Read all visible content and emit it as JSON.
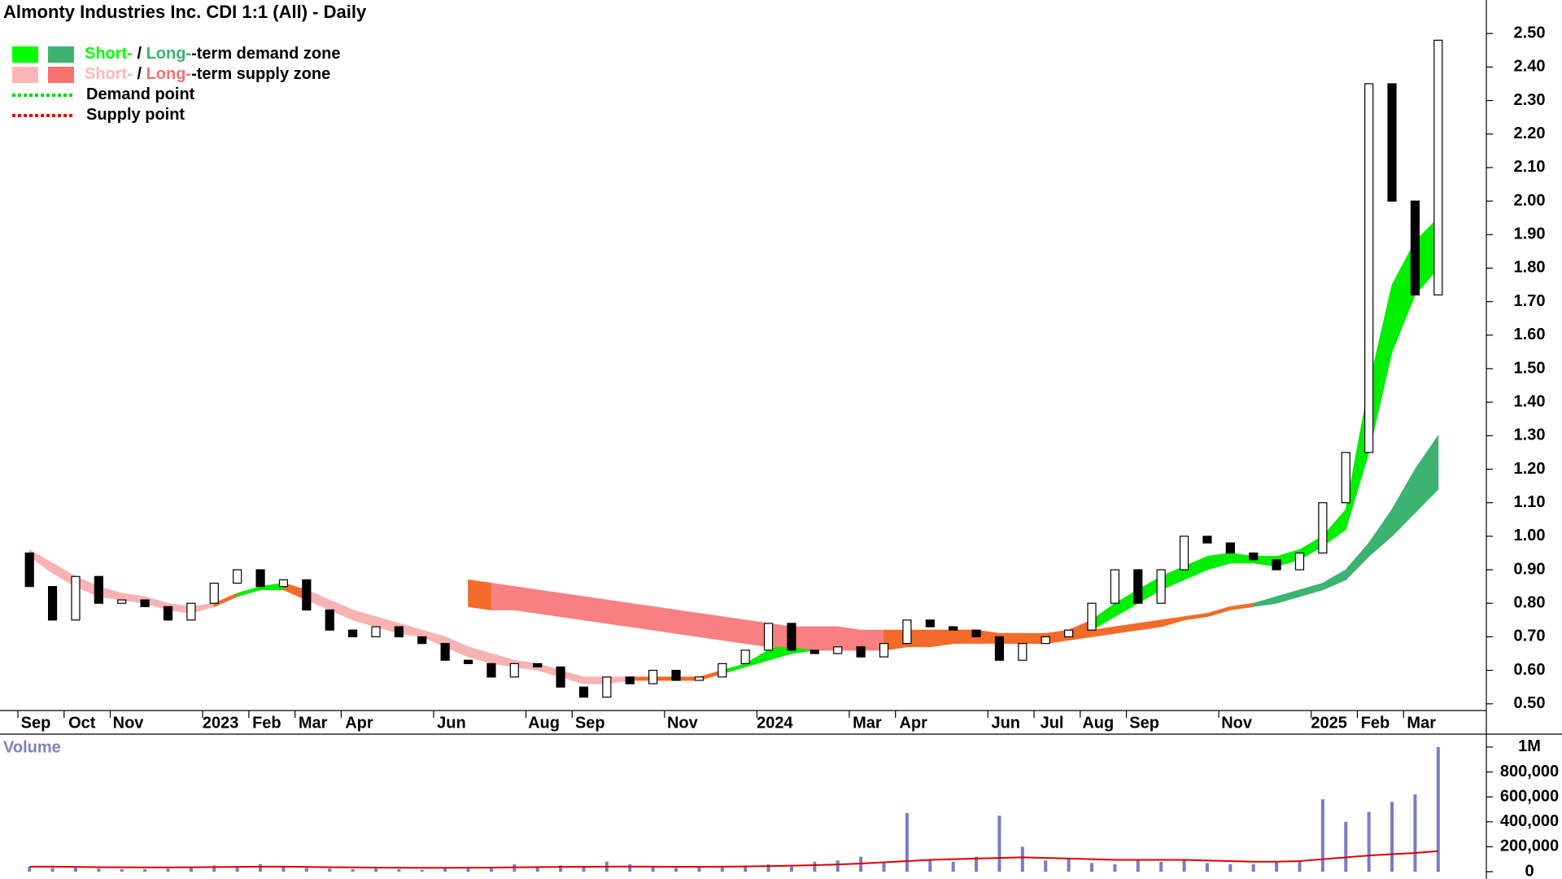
{
  "chart_data": [
    {
      "type": "candlestick",
      "title": "Almonty Industries Inc. CDI 1:1 (All) - Daily",
      "categories": [
        "Sep",
        null,
        "Oct",
        null,
        "Nov",
        null,
        null,
        null,
        "2023",
        null,
        "Feb",
        null,
        "Mar",
        null,
        "Apr",
        null,
        null,
        null,
        "Jun",
        null,
        null,
        null,
        "Aug",
        null,
        "Sep",
        null,
        null,
        null,
        "Nov",
        null,
        null,
        null,
        "2024",
        null,
        null,
        null,
        "Mar",
        null,
        "Apr",
        null,
        null,
        null,
        "Jun",
        null,
        "Jul",
        null,
        "Aug",
        null,
        "Sep",
        null,
        null,
        null,
        "Nov",
        null,
        null,
        null,
        "2025",
        null,
        "Feb",
        null,
        "Mar",
        null
      ],
      "open": [
        0.95,
        0.85,
        0.75,
        0.88,
        0.8,
        0.81,
        0.79,
        0.75,
        0.8,
        0.86,
        0.9,
        0.85,
        0.87,
        0.78,
        0.72,
        0.7,
        0.73,
        0.7,
        0.68,
        0.63,
        0.62,
        0.58,
        0.62,
        0.61,
        0.55,
        0.52,
        0.58,
        0.56,
        0.6,
        0.57,
        0.58,
        0.62,
        0.66,
        0.74,
        0.66,
        0.65,
        0.67,
        0.64,
        0.68,
        0.75,
        0.73,
        0.72,
        0.7,
        0.63,
        0.68,
        0.7,
        0.72,
        0.8,
        0.9,
        0.8,
        0.9,
        1.0,
        0.98,
        0.95,
        0.93,
        0.9,
        0.95,
        1.1,
        1.25,
        2.35,
        2.0,
        1.72
      ],
      "close": [
        0.85,
        0.75,
        0.88,
        0.8,
        0.81,
        0.79,
        0.75,
        0.8,
        0.86,
        0.9,
        0.85,
        0.87,
        0.78,
        0.72,
        0.7,
        0.73,
        0.7,
        0.68,
        0.63,
        0.62,
        0.58,
        0.62,
        0.61,
        0.55,
        0.52,
        0.58,
        0.56,
        0.6,
        0.57,
        0.58,
        0.62,
        0.66,
        0.74,
        0.66,
        0.65,
        0.67,
        0.64,
        0.68,
        0.75,
        0.73,
        0.72,
        0.7,
        0.63,
        0.68,
        0.7,
        0.72,
        0.8,
        0.9,
        0.8,
        0.9,
        1.0,
        0.98,
        0.95,
        0.93,
        0.9,
        0.95,
        1.1,
        1.25,
        2.35,
        2.0,
        1.72,
        2.48
      ],
      "up_color": "#ffffff",
      "down_color": "#000000",
      "bands": [
        {
          "lower": [
            0.94,
            0.89,
            0.85,
            0.82,
            0.81,
            0.8,
            0.78,
            0.77,
            0.79,
            0.82,
            0.84,
            0.84,
            0.81,
            0.78,
            0.75,
            0.73,
            0.71,
            0.7,
            0.67,
            0.64,
            0.62,
            0.61,
            0.6,
            0.58,
            0.56,
            0.56,
            0.57,
            0.57,
            0.57,
            0.57,
            0.59,
            0.61,
            0.63,
            0.65,
            0.66,
            0.66,
            0.66,
            0.66,
            0.67,
            0.68,
            0.69,
            0.69,
            0.69,
            0.68,
            0.68,
            0.7,
            0.72,
            0.76,
            0.8,
            0.84,
            0.87,
            0.9,
            0.92,
            0.92,
            0.91,
            0.93,
            0.97,
            1.02,
            1.25,
            1.55,
            1.72,
            1.8
          ],
          "upper": [
            0.96,
            0.92,
            0.88,
            0.85,
            0.83,
            0.82,
            0.8,
            0.79,
            0.8,
            0.83,
            0.85,
            0.86,
            0.84,
            0.81,
            0.78,
            0.76,
            0.74,
            0.72,
            0.7,
            0.67,
            0.65,
            0.63,
            0.62,
            0.6,
            0.58,
            0.58,
            0.58,
            0.58,
            0.58,
            0.58,
            0.6,
            0.62,
            0.66,
            0.69,
            0.69,
            0.69,
            0.69,
            0.7,
            0.71,
            0.72,
            0.72,
            0.72,
            0.71,
            0.71,
            0.71,
            0.72,
            0.75,
            0.8,
            0.84,
            0.88,
            0.91,
            0.94,
            0.95,
            0.94,
            0.94,
            0.96,
            1.0,
            1.08,
            1.45,
            1.75,
            1.88,
            1.95
          ],
          "colors": [
            "#f7b3b3",
            "#f7b3b3",
            "#f7b3b3",
            "#f7b3b3",
            "#f7b3b3",
            "#f7b3b3",
            "#f7b3b3",
            "#f7b3b3",
            "#f26b2a",
            "#00ee00",
            "#00ee00",
            "#f26b2a",
            "#f7b3b3",
            "#f7b3b3",
            "#f7b3b3",
            "#f7b3b3",
            "#f7b3b3",
            "#f7b3b3",
            "#f7b3b3",
            "#f7b3b3",
            "#f7b3b3",
            "#f7b3b3",
            "#f7b3b3",
            "#f7b3b3",
            "#f7b3b3",
            "#f7b3b3",
            "#f26b2a",
            "#f26b2a",
            "#f26b2a",
            "#f26b2a",
            "#00ee00",
            "#00ee00",
            "#00ee00",
            "#00ee00",
            "#f26b2a",
            "#f26b2a",
            "#f26b2a",
            "#f26b2a",
            "#00ee00",
            "#00ee00",
            "#f26b2a",
            "#f26b2a",
            "#f26b2a",
            "#f26b2a",
            "#f26b2a",
            "#f26b2a",
            "#00ee00",
            "#00ee00",
            "#00ee00",
            "#00ee00",
            "#00ee00",
            "#00ee00",
            "#00ee00",
            "#00ee00",
            "#00ee00",
            "#00ee00",
            "#00ee00",
            "#00ee00",
            "#00ee00",
            "#00ee00",
            "#00ee00",
            "#f26b2a"
          ]
        },
        {
          "lower": [
            null,
            null,
            null,
            null,
            null,
            null,
            null,
            null,
            null,
            null,
            null,
            null,
            null,
            null,
            null,
            null,
            null,
            null,
            null,
            0.79,
            0.78,
            0.78,
            0.77,
            0.76,
            0.75,
            0.74,
            0.73,
            0.72,
            0.71,
            0.7,
            0.69,
            0.68,
            0.67,
            0.67,
            0.66,
            0.66,
            0.66,
            0.66,
            0.67,
            0.67,
            0.68,
            0.68,
            0.68,
            0.68,
            0.68,
            0.69,
            0.7,
            0.71,
            0.72,
            0.73,
            0.75,
            0.76,
            0.78,
            0.79,
            0.8,
            0.82,
            0.84,
            0.87,
            0.94,
            1.0,
            1.07,
            1.14
          ],
          "upper": [
            null,
            null,
            null,
            null,
            null,
            null,
            null,
            null,
            null,
            null,
            null,
            null,
            null,
            null,
            null,
            null,
            null,
            null,
            null,
            0.87,
            0.86,
            0.85,
            0.84,
            0.83,
            0.82,
            0.81,
            0.8,
            0.79,
            0.78,
            0.77,
            0.76,
            0.75,
            0.74,
            0.73,
            0.73,
            0.73,
            0.72,
            0.72,
            0.72,
            0.72,
            0.72,
            0.72,
            0.71,
            0.71,
            0.7,
            0.71,
            0.72,
            0.73,
            0.74,
            0.75,
            0.76,
            0.77,
            0.79,
            0.8,
            0.82,
            0.84,
            0.86,
            0.9,
            0.98,
            1.08,
            1.2,
            1.3
          ],
          "colors": [
            null,
            null,
            null,
            null,
            null,
            null,
            null,
            null,
            null,
            null,
            null,
            null,
            null,
            null,
            null,
            null,
            null,
            null,
            null,
            "#f26b2a",
            "#f88080",
            "#f88080",
            "#f88080",
            "#f88080",
            "#f88080",
            "#f88080",
            "#f88080",
            "#f88080",
            "#f88080",
            "#f88080",
            "#f88080",
            "#f88080",
            "#f88080",
            "#f88080",
            "#f88080",
            "#f88080",
            "#f88080",
            "#f26b2a",
            "#f26b2a",
            "#f26b2a",
            "#f26b2a",
            "#f26b2a",
            "#f26b2a",
            "#f26b2a",
            "#f26b2a",
            "#f26b2a",
            "#f26b2a",
            "#f26b2a",
            "#f26b2a",
            "#f26b2a",
            "#f26b2a",
            "#f26b2a",
            "#f26b2a",
            "#3cb371",
            "#3cb371",
            "#3cb371",
            "#3cb371",
            "#3cb371",
            "#3cb371",
            "#3cb371",
            "#3cb371",
            "#3cb371"
          ]
        }
      ],
      "ylim": [
        0.48,
        2.6
      ],
      "yticks": [
        {
          "value": 0.5,
          "label": "0.50"
        },
        {
          "value": 0.6,
          "label": "0.60"
        },
        {
          "value": 0.7,
          "label": "0.70"
        },
        {
          "value": 0.8,
          "label": "0.80"
        },
        {
          "value": 0.9,
          "label": "0.90"
        },
        {
          "value": 1.0,
          "label": "1.00"
        },
        {
          "value": 1.1,
          "label": "1.10"
        },
        {
          "value": 1.2,
          "label": "1.20"
        },
        {
          "value": 1.3,
          "label": "1.30"
        },
        {
          "value": 1.4,
          "label": "1.40"
        },
        {
          "value": 1.5,
          "label": "1.50"
        },
        {
          "value": 1.6,
          "label": "1.60"
        },
        {
          "value": 1.7,
          "label": "1.70"
        },
        {
          "value": 1.8,
          "label": "1.80"
        },
        {
          "value": 1.9,
          "label": "1.90"
        },
        {
          "value": 2.0,
          "label": "2.00"
        },
        {
          "value": 2.1,
          "label": "2.10"
        },
        {
          "value": 2.2,
          "label": "2.20"
        },
        {
          "value": 2.3,
          "label": "2.30"
        },
        {
          "value": 2.4,
          "label": "2.40"
        },
        {
          "value": 2.5,
          "label": "2.50"
        }
      ],
      "legend": [
        {
          "swatches": [
            "#00ff00",
            "#3cb371"
          ],
          "parts": [
            {
              "text": "Short-",
              "color": "#00ff00"
            },
            {
              "text": " / "
            },
            {
              "text": "Long-",
              "color": "#3cb371"
            },
            {
              "text": "-term demand zone"
            }
          ]
        },
        {
          "swatches": [
            "#ffb6b6",
            "#f87070"
          ],
          "parts": [
            {
              "text": "Short-",
              "color": "#ffb6b6"
            },
            {
              "text": " / "
            },
            {
              "text": "Long-",
              "color": "#f87070"
            },
            {
              "text": "-term supply zone"
            }
          ]
        },
        {
          "line_color": "#00dd00",
          "parts": [
            {
              "text": "Demand point"
            }
          ]
        },
        {
          "line_color": "#ee0000",
          "parts": [
            {
              "text": "Supply point"
            }
          ]
        }
      ]
    },
    {
      "type": "bar",
      "title": "Volume",
      "values": [
        40000,
        30000,
        35000,
        25000,
        20000,
        20000,
        25000,
        30000,
        50000,
        40000,
        60000,
        45000,
        30000,
        25000,
        20000,
        25000,
        20000,
        15000,
        30000,
        25000,
        35000,
        60000,
        40000,
        50000,
        45000,
        80000,
        60000,
        40000,
        30000,
        35000,
        40000,
        50000,
        60000,
        40000,
        80000,
        90000,
        120000,
        80000,
        470000,
        100000,
        80000,
        120000,
        450000,
        200000,
        90000,
        100000,
        70000,
        60000,
        90000,
        80000,
        100000,
        70000,
        60000,
        60000,
        80000,
        90000,
        580000,
        400000,
        480000,
        560000,
        620000,
        1000000
      ],
      "color": "#7b7bc8",
      "average": {
        "values": [
          40000,
          40000,
          38000,
          36000,
          35000,
          34000,
          34000,
          35000,
          37000,
          38000,
          40000,
          40000,
          38000,
          36000,
          34000,
          33000,
          32000,
          31000,
          31000,
          32000,
          33000,
          35000,
          37000,
          38000,
          39000,
          40000,
          41000,
          40000,
          39000,
          39000,
          40000,
          42000,
          45000,
          48000,
          52000,
          58000,
          65000,
          75000,
          85000,
          95000,
          100000,
          105000,
          110000,
          115000,
          110000,
          105000,
          100000,
          95000,
          95000,
          95000,
          95000,
          90000,
          85000,
          80000,
          80000,
          85000,
          100000,
          115000,
          130000,
          140000,
          150000,
          165000
        ],
        "color": "#dd0000"
      },
      "ylim": [
        0,
        1080000
      ],
      "yticks": [
        0,
        {
          "value": 200000,
          "label": "200,000"
        },
        {
          "value": 400000,
          "label": "400,000"
        },
        {
          "value": 600000,
          "label": "600,000"
        },
        {
          "value": 800000,
          "label": "800,000"
        },
        {
          "value": 1000000,
          "label": "1M"
        }
      ]
    }
  ]
}
